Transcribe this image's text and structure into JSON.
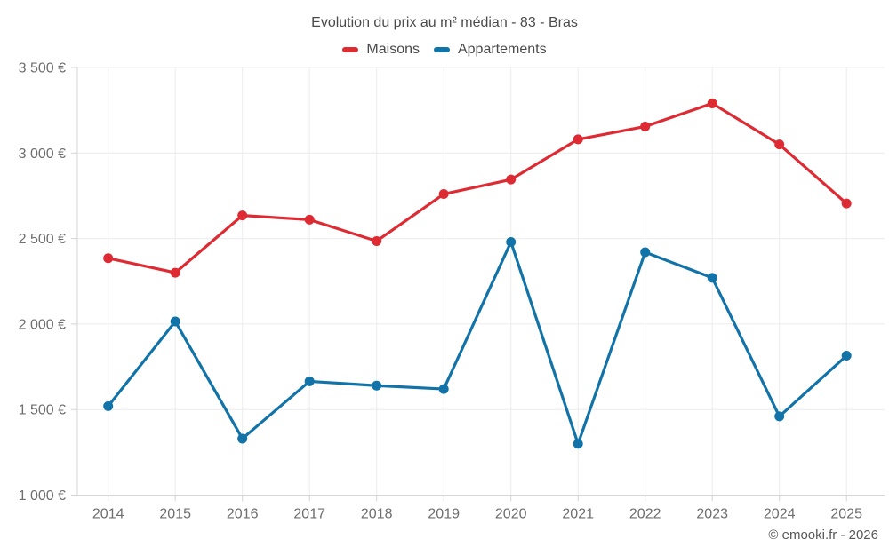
{
  "chart": {
    "title": "Evolution du prix au m² médian - 83 - Bras",
    "footer": "© emooki.fr - 2026"
  },
  "chart_data": {
    "type": "line",
    "title": "Evolution du prix au m² médian - 83 - Bras",
    "categories": [
      "2014",
      "2015",
      "2016",
      "2017",
      "2018",
      "2019",
      "2020",
      "2021",
      "2022",
      "2023",
      "2024",
      "2025"
    ],
    "series": [
      {
        "name": "Maisons",
        "color": "#de2b33",
        "values": [
          2385,
          2300,
          2635,
          2610,
          2485,
          2760,
          2845,
          3080,
          3155,
          3290,
          3050,
          2705
        ]
      },
      {
        "name": "Appartements",
        "color": "#1273a8",
        "values": [
          1520,
          2015,
          1330,
          1665,
          1640,
          1620,
          2480,
          1300,
          2420,
          2270,
          1460,
          1815
        ]
      }
    ],
    "xlabel": "",
    "ylabel": "",
    "ylim": [
      1000,
      3500
    ],
    "yticks": [
      1000,
      1500,
      2000,
      2500,
      3000,
      3500
    ],
    "ytick_labels": [
      "1 000 €",
      "1 500 €",
      "2 000 €",
      "2 500 €",
      "3 000 €",
      "3 500 €"
    ],
    "currency_suffix": " €",
    "grid": true,
    "legend_position": "top",
    "marker": "circle"
  }
}
